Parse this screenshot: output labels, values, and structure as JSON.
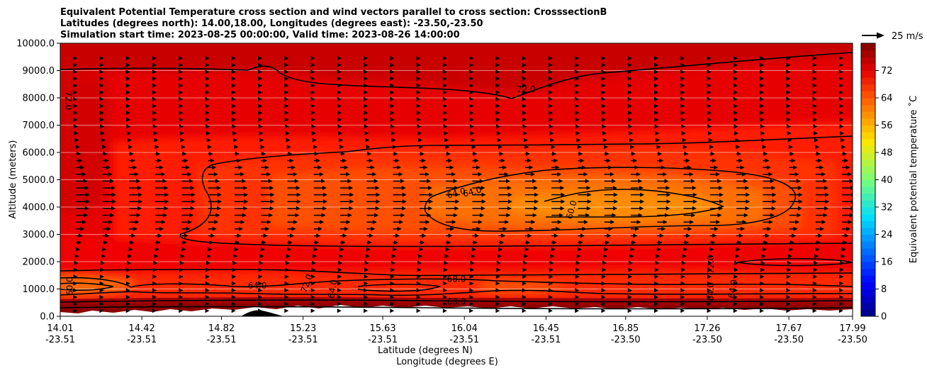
{
  "chart_data": {
    "type": "contour-cross-section",
    "title_lines": [
      "Equivalent Potential Temperature cross section and wind vectors parallel to cross section: CrosssectionB",
      "Latitudes (degrees north): 14.00,18.00, Longitudes (degrees east): -23.50,-23.50",
      "Simulation start time: 2023-08-25 00:00:00, Valid time: 2023-08-26 14:00:00"
    ],
    "xlabel_line1": "Latitude (degrees N)",
    "xlabel_line2": "Longitude (degrees E)",
    "ylabel": "Altitude (meters)",
    "colorbar_label": "Equivalent potential temperature ˚C",
    "quiver_key_label": "25 m/s",
    "xlim": [
      14.01,
      17.99
    ],
    "ylim": [
      0,
      10000
    ],
    "x_ticks": [
      {
        "lat": "14.01",
        "lon": "-23.51",
        "value": 14.01
      },
      {
        "lat": "14.42",
        "lon": "-23.51",
        "value": 14.42
      },
      {
        "lat": "14.82",
        "lon": "-23.51",
        "value": 14.82
      },
      {
        "lat": "15.23",
        "lon": "-23.51",
        "value": 15.23
      },
      {
        "lat": "15.63",
        "lon": "-23.51",
        "value": 15.63
      },
      {
        "lat": "16.04",
        "lon": "-23.51",
        "value": 16.04
      },
      {
        "lat": "16.45",
        "lon": "-23.51",
        "value": 16.45
      },
      {
        "lat": "16.85",
        "lon": "-23.50",
        "value": 16.85
      },
      {
        "lat": "17.26",
        "lon": "-23.50",
        "value": 17.26
      },
      {
        "lat": "17.67",
        "lon": "-23.50",
        "value": 17.67
      },
      {
        "lat": "17.99",
        "lon": "-23.50",
        "value": 17.99
      }
    ],
    "y_ticks": [
      "0.0",
      "1000.0",
      "2000.0",
      "3000.0",
      "4000.0",
      "5000.0",
      "6000.0",
      "7000.0",
      "8000.0",
      "9000.0",
      "10000.0"
    ],
    "y_tick_values": [
      0,
      1000,
      2000,
      3000,
      4000,
      5000,
      6000,
      7000,
      8000,
      9000,
      10000
    ],
    "colorbar_range": [
      0,
      80
    ],
    "colorbar_ticks": [
      "0",
      "8",
      "16",
      "24",
      "32",
      "40",
      "48",
      "56",
      "64",
      "72"
    ],
    "colorbar_tick_values": [
      0,
      8,
      16,
      24,
      32,
      40,
      48,
      56,
      64,
      72
    ],
    "grid": "horizontal",
    "contour_labels": [
      {
        "text": "72.0",
        "lat": 14.05,
        "alt": 7900,
        "rot": 90
      },
      {
        "text": "72.0",
        "lat": 16.35,
        "alt": 8300,
        "rot": 0
      },
      {
        "text": "64.0",
        "lat": 16.0,
        "alt": 4500,
        "rot": -15
      },
      {
        "text": "64.0",
        "lat": 16.08,
        "alt": 4550,
        "rot": -15
      },
      {
        "text": "60.0",
        "lat": 16.58,
        "alt": 3900,
        "rot": -75
      },
      {
        "text": "64.0",
        "lat": 15.0,
        "alt": 1100,
        "rot": 0
      },
      {
        "text": "68.0",
        "lat": 16.0,
        "alt": 1350,
        "rot": 0
      },
      {
        "text": "68.0",
        "lat": 16.0,
        "alt": 520,
        "rot": 0
      },
      {
        "text": "72.0",
        "lat": 17.28,
        "alt": 1900,
        "rot": -90
      },
      {
        "text": "72.0",
        "lat": 15.25,
        "alt": 1200,
        "rot": -70
      },
      {
        "text": "64.0",
        "lat": 15.38,
        "alt": 1000,
        "rot": -80
      },
      {
        "text": "64.0",
        "lat": 17.28,
        "alt": 900,
        "rot": -90
      },
      {
        "text": "64.0",
        "lat": 17.39,
        "alt": 1000,
        "rot": -80
      },
      {
        "text": "60.0",
        "lat": 14.06,
        "alt": 1100,
        "rot": -90
      }
    ],
    "wind_vectors": {
      "columns": 30,
      "levels": [
        200,
        450,
        700,
        950,
        1200,
        1450,
        1700,
        1950,
        2200,
        2450,
        2700,
        2950,
        3200,
        3450,
        3700,
        3950,
        4200,
        4450,
        4700,
        4950,
        5200,
        5450,
        5700,
        5950,
        6200,
        6450,
        6700,
        6950,
        7200,
        7450,
        7700,
        7950,
        8200,
        8450,
        8700,
        8950,
        9200,
        9450
      ],
      "peak_speed_ms": 22,
      "peak_altitude_m": 4300
    },
    "colors": {
      "darkest": "#8b0000",
      "dark_red": "#c80000",
      "red": "#e60000",
      "bright_red": "#ff1a00",
      "red_orange": "#ff3300",
      "orange_red": "#ff5000",
      "orange": "#ff7000",
      "light_orange": "#ff8c00",
      "terrain": "#000000"
    }
  }
}
